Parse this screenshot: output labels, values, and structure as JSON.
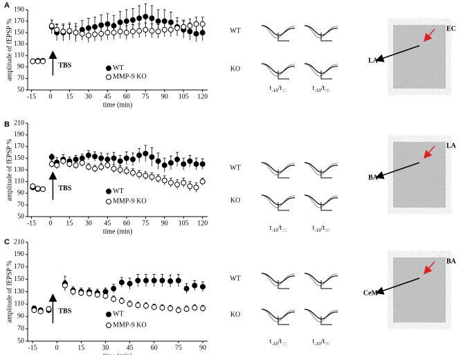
{
  "chart_data": [
    {
      "type": "scatter",
      "panel": "A",
      "ylabel": "amplitude of fEPSP %",
      "xlabel": "time (min)",
      "annotation": "TBS",
      "xlim": [
        -18,
        124
      ],
      "ylim": [
        50,
        190
      ],
      "xticks": [
        -15,
        0,
        15,
        30,
        45,
        60,
        75,
        90,
        105,
        120
      ],
      "yticks": [
        50,
        70,
        90,
        110,
        130,
        150,
        170,
        190
      ],
      "x": [
        -14,
        -10,
        -6,
        1,
        5,
        10,
        15,
        20,
        25,
        30,
        35,
        40,
        45,
        50,
        55,
        60,
        65,
        70,
        75,
        80,
        85,
        90,
        95,
        100,
        105,
        110,
        115,
        120
      ],
      "series": [
        {
          "name": "WT",
          "color": "#000000",
          "values": [
            100,
            101,
            101,
            160,
            150,
            150,
            152,
            150,
            155,
            158,
            160,
            163,
            165,
            162,
            168,
            170,
            172,
            175,
            178,
            175,
            170,
            170,
            168,
            160,
            155,
            152,
            148,
            150
          ],
          "errors": [
            4,
            4,
            4,
            12,
            14,
            15,
            15,
            16,
            16,
            17,
            17,
            18,
            18,
            18,
            19,
            20,
            20,
            22,
            22,
            22,
            20,
            20,
            18,
            16,
            15,
            15,
            14,
            14
          ]
        },
        {
          "name": "MMP-9 KO",
          "color": "#ffffff",
          "values": [
            100,
            100,
            100,
            162,
            155,
            152,
            153,
            150,
            148,
            145,
            147,
            148,
            150,
            150,
            152,
            150,
            152,
            153,
            155,
            153,
            152,
            155,
            155,
            158,
            160,
            162,
            165,
            165
          ],
          "errors": [
            4,
            4,
            4,
            10,
            10,
            11,
            11,
            11,
            11,
            12,
            12,
            12,
            12,
            12,
            12,
            12,
            12,
            12,
            12,
            12,
            12,
            12,
            12,
            12,
            12,
            12,
            12,
            12
          ]
        }
      ],
      "insets": {
        "rows": [
          "WT",
          "KO"
        ],
        "captions": [
          {
            "base": "t",
            "sub1": "-10",
            "sep": "/t",
            "sub2": "15"
          },
          {
            "base": "t",
            "sub1": "-10",
            "sep": "/t",
            "sub2": "90"
          }
        ]
      },
      "image_labels": {
        "red": "EC",
        "black": "LA"
      }
    },
    {
      "type": "scatter",
      "panel": "B",
      "ylabel": "amplitude of fEPSP %",
      "xlabel": "time (min)",
      "annotation": "TBS",
      "xlim": [
        -18,
        124
      ],
      "ylim": [
        50,
        210
      ],
      "xticks": [
        -15,
        0,
        15,
        30,
        45,
        60,
        75,
        90,
        105,
        120
      ],
      "yticks": [
        50,
        70,
        90,
        110,
        130,
        150,
        170,
        190,
        210
      ],
      "x": [
        -14,
        -10,
        -6,
        1,
        5,
        10,
        15,
        20,
        25,
        30,
        35,
        40,
        45,
        50,
        55,
        60,
        65,
        70,
        75,
        80,
        85,
        90,
        95,
        100,
        105,
        110,
        115,
        120
      ],
      "series": [
        {
          "name": "WT",
          "color": "#000000",
          "values": [
            100,
            97,
            97,
            152,
            143,
            148,
            145,
            148,
            150,
            155,
            153,
            150,
            148,
            150,
            145,
            150,
            148,
            155,
            158,
            152,
            145,
            138,
            142,
            148,
            140,
            145,
            140,
            140
          ],
          "errors": [
            4,
            4,
            4,
            5,
            8,
            8,
            7,
            7,
            7,
            8,
            8,
            9,
            10,
            10,
            10,
            11,
            11,
            12,
            14,
            16,
            14,
            12,
            12,
            12,
            10,
            10,
            10,
            9
          ]
        },
        {
          "name": "MMP-9 KO",
          "color": "#ffffff",
          "values": [
            102,
            98,
            97,
            140,
            138,
            145,
            140,
            138,
            142,
            135,
            132,
            135,
            138,
            132,
            130,
            128,
            125,
            122,
            120,
            118,
            115,
            112,
            108,
            105,
            108,
            102,
            100,
            110
          ],
          "errors": [
            4,
            4,
            4,
            6,
            6,
            6,
            6,
            6,
            6,
            6,
            6,
            6,
            6,
            7,
            7,
            7,
            7,
            7,
            7,
            7,
            7,
            8,
            8,
            8,
            8,
            8,
            8,
            6
          ]
        }
      ],
      "insets": {
        "rows": [
          "WT",
          "KO"
        ],
        "captions": [
          {
            "base": "t",
            "sub1": "-10",
            "sep": "/t",
            "sub2": "15"
          },
          {
            "base": "t",
            "sub1": "-10",
            "sep": "/t",
            "sub2": "90"
          }
        ]
      },
      "image_labels": {
        "red": "LA",
        "black": "BA"
      }
    },
    {
      "type": "scatter",
      "panel": "C",
      "ylabel": "amplitude of fEPSP %",
      "xlabel": "time (min)",
      "annotation": "TBS",
      "xlim": [
        -18,
        93
      ],
      "ylim": [
        50,
        210
      ],
      "xticks": [
        -15,
        0,
        15,
        30,
        45,
        60,
        75,
        90
      ],
      "yticks": [
        50,
        70,
        90,
        110,
        130,
        150,
        170,
        190,
        210
      ],
      "x": [
        -14,
        -10,
        -5,
        5,
        10,
        15,
        20,
        25,
        30,
        35,
        40,
        45,
        50,
        55,
        60,
        65,
        70,
        75,
        80,
        85,
        90
      ],
      "series": [
        {
          "name": "WT",
          "color": "#000000",
          "values": [
            103,
            100,
            100,
            143,
            132,
            130,
            130,
            128,
            130,
            135,
            145,
            143,
            148,
            148,
            148,
            148,
            147,
            148,
            135,
            140,
            138
          ],
          "errors": [
            4,
            4,
            4,
            12,
            6,
            6,
            6,
            6,
            6,
            7,
            8,
            9,
            10,
            10,
            10,
            10,
            10,
            10,
            8,
            8,
            8
          ]
        },
        {
          "name": "MMP-9 KO",
          "color": "#ffffff",
          "values": [
            100,
            98,
            102,
            140,
            130,
            128,
            127,
            125,
            123,
            118,
            115,
            110,
            108,
            107,
            105,
            104,
            103,
            100,
            102,
            104,
            103
          ],
          "errors": [
            4,
            4,
            4,
            8,
            6,
            5,
            5,
            5,
            5,
            5,
            5,
            5,
            5,
            5,
            5,
            5,
            5,
            5,
            5,
            5,
            5
          ]
        }
      ],
      "insets": {
        "rows": [
          "WT",
          "KO"
        ],
        "captions": [
          {
            "base": "t",
            "sub1": "-10",
            "sep": "/t",
            "sub2": "15"
          },
          {
            "base": "t",
            "sub1": "-10",
            "sep": "/t",
            "sub2": "90"
          }
        ]
      },
      "image_labels": {
        "red": "BA",
        "black": "CeM"
      }
    }
  ]
}
